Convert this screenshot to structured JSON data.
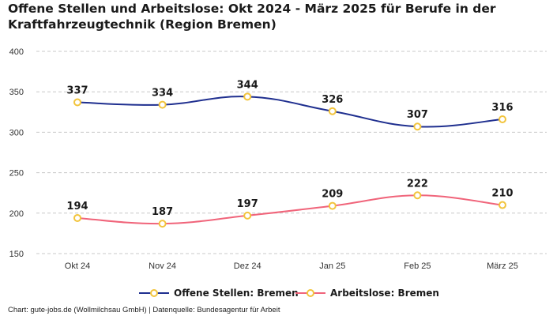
{
  "chart_data": {
    "type": "line",
    "title": "Offene Stellen und Arbeitslose: Okt 2024 - März 2025 für Berufe in der Kraftfahrzeugtechnik (Region Bremen)",
    "categories": [
      "Okt 24",
      "Nov 24",
      "Dez 24",
      "Jan 25",
      "Feb 25",
      "März 25"
    ],
    "series": [
      {
        "name": "Offene Stellen: Bremen",
        "values": [
          337,
          334,
          344,
          326,
          307,
          316
        ],
        "color": "#1f2f8f"
      },
      {
        "name": "Arbeitslose: Bremen",
        "values": [
          194,
          187,
          197,
          209,
          222,
          210
        ],
        "color": "#f0647a"
      }
    ],
    "marker_color": "#f2c43c",
    "ylim": [
      150,
      400
    ],
    "yticks": [
      150,
      200,
      250,
      300,
      350,
      400
    ],
    "xlabel": "",
    "ylabel": "",
    "grid": true,
    "legend": "bottom-center"
  },
  "footer": "Chart: gute-jobs.de (Wollmilchsau GmbH) | Datenquelle: Bundesagentur für Arbeit"
}
